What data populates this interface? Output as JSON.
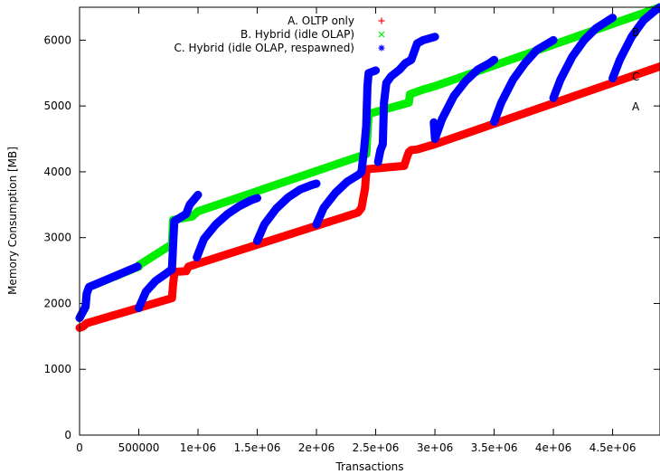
{
  "chart_data": {
    "type": "scatter",
    "xlabel": "Transactions",
    "ylabel": "Memory Consumption [MB]",
    "xlim": [
      0,
      4900000
    ],
    "ylim": [
      0,
      6500
    ],
    "x_ticks": [
      0,
      500000,
      1000000,
      1500000,
      2000000,
      2500000,
      3000000,
      3500000,
      4000000,
      4500000
    ],
    "x_tick_labels": [
      "0",
      "500000",
      "1e+06",
      "1.5e+06",
      "2e+06",
      "2.5e+06",
      "3e+06",
      "3.5e+06",
      "4e+06",
      "4.5e+06"
    ],
    "y_ticks": [
      0,
      1000,
      2000,
      3000,
      4000,
      5000,
      6000
    ],
    "y_tick_labels": [
      "0",
      "1000",
      "2000",
      "3000",
      "4000",
      "5000",
      "6000"
    ],
    "legend_position": "top-center",
    "series": [
      {
        "name": "A. OLTP only",
        "marker": "+",
        "color": "#ff0000",
        "end_label": "A",
        "segments": [
          [
            [
              0,
              1630
            ],
            [
              30000,
              1650
            ],
            [
              60000,
              1700
            ],
            [
              780000,
              2080
            ],
            [
              790000,
              2300
            ],
            [
              800000,
              2450
            ],
            [
              810000,
              2480
            ],
            [
              900000,
              2490
            ],
            [
              920000,
              2560
            ],
            [
              2350000,
              3380
            ],
            [
              2380000,
              3450
            ],
            [
              2410000,
              3750
            ],
            [
              2420000,
              4000
            ],
            [
              2430000,
              4040
            ],
            [
              2740000,
              4090
            ],
            [
              2760000,
              4200
            ],
            [
              2780000,
              4300
            ],
            [
              2800000,
              4330
            ],
            [
              2850000,
              4340
            ],
            [
              3000000,
              4420
            ],
            [
              4900000,
              5600
            ]
          ]
        ]
      },
      {
        "name": "B. Hybrid (idle OLAP)",
        "marker": "x",
        "color": "#00ee00",
        "end_label": "B",
        "segments": [
          [
            [
              0,
              1780
            ],
            [
              50000,
              1950
            ],
            [
              60000,
              2150
            ],
            [
              80000,
              2250
            ],
            [
              500000,
              2560
            ],
            [
              500000,
              2580
            ],
            [
              780000,
              2900
            ],
            [
              790000,
              3270
            ],
            [
              950000,
              3320
            ],
            [
              1000000,
              3400
            ],
            [
              2420000,
              4270
            ],
            [
              2440000,
              4880
            ],
            [
              2780000,
              5050
            ],
            [
              2790000,
              5180
            ],
            [
              2900000,
              5250
            ],
            [
              3000000,
              5300
            ],
            [
              4900000,
              6500
            ]
          ]
        ]
      },
      {
        "name": "C. Hybrid (idle OLAP, respawned)",
        "marker": "*",
        "color": "#0000ff",
        "end_label": "C",
        "segments": [
          [
            [
              0,
              1780
            ],
            [
              50000,
              1950
            ],
            [
              60000,
              2150
            ],
            [
              80000,
              2250
            ],
            [
              490000,
              2560
            ]
          ],
          [
            [
              500000,
              1930
            ],
            [
              560000,
              2180
            ],
            [
              640000,
              2340
            ],
            [
              720000,
              2440
            ],
            [
              780000,
              2520
            ],
            [
              790000,
              2900
            ],
            [
              800000,
              3250
            ],
            [
              900000,
              3360
            ],
            [
              930000,
              3500
            ],
            [
              1000000,
              3650
            ]
          ],
          [
            [
              990000,
              2700
            ],
            [
              1050000,
              2980
            ],
            [
              1150000,
              3200
            ],
            [
              1250000,
              3360
            ],
            [
              1350000,
              3480
            ],
            [
              1450000,
              3570
            ],
            [
              1500000,
              3600
            ]
          ],
          [
            [
              1500000,
              2950
            ],
            [
              1560000,
              3200
            ],
            [
              1660000,
              3440
            ],
            [
              1760000,
              3610
            ],
            [
              1860000,
              3730
            ],
            [
              1960000,
              3800
            ],
            [
              2000000,
              3820
            ]
          ],
          [
            [
              2000000,
              3200
            ],
            [
              2060000,
              3450
            ],
            [
              2160000,
              3680
            ],
            [
              2260000,
              3850
            ],
            [
              2360000,
              3960
            ],
            [
              2380000,
              4000
            ],
            [
              2400000,
              4300
            ],
            [
              2420000,
              4700
            ],
            [
              2430000,
              5300
            ],
            [
              2440000,
              5500
            ],
            [
              2500000,
              5540
            ]
          ],
          [
            [
              2520000,
              4150
            ],
            [
              2540000,
              4330
            ],
            [
              2560000,
              4420
            ],
            [
              2570000,
              5050
            ],
            [
              2590000,
              5350
            ],
            [
              2630000,
              5450
            ],
            [
              2700000,
              5550
            ],
            [
              2750000,
              5650
            ],
            [
              2800000,
              5700
            ],
            [
              2830000,
              5850
            ],
            [
              2850000,
              5950
            ],
            [
              2900000,
              6000
            ],
            [
              3000000,
              6050
            ]
          ],
          [
            [
              2990000,
              4750
            ],
            [
              3000000,
              4500
            ],
            [
              3060000,
              4800
            ],
            [
              3160000,
              5150
            ],
            [
              3260000,
              5380
            ],
            [
              3360000,
              5550
            ],
            [
              3460000,
              5650
            ],
            [
              3500000,
              5700
            ]
          ],
          [
            [
              3500000,
              4760
            ],
            [
              3560000,
              5050
            ],
            [
              3660000,
              5400
            ],
            [
              3760000,
              5650
            ],
            [
              3860000,
              5850
            ],
            [
              4000000,
              6000
            ]
          ],
          [
            [
              4000000,
              5120
            ],
            [
              4060000,
              5400
            ],
            [
              4160000,
              5750
            ],
            [
              4260000,
              6000
            ],
            [
              4360000,
              6180
            ],
            [
              4500000,
              6340
            ]
          ],
          [
            [
              4500000,
              5420
            ],
            [
              4560000,
              5700
            ],
            [
              4660000,
              6050
            ],
            [
              4760000,
              6300
            ],
            [
              4860000,
              6450
            ],
            [
              4900000,
              6500
            ]
          ]
        ]
      }
    ]
  }
}
